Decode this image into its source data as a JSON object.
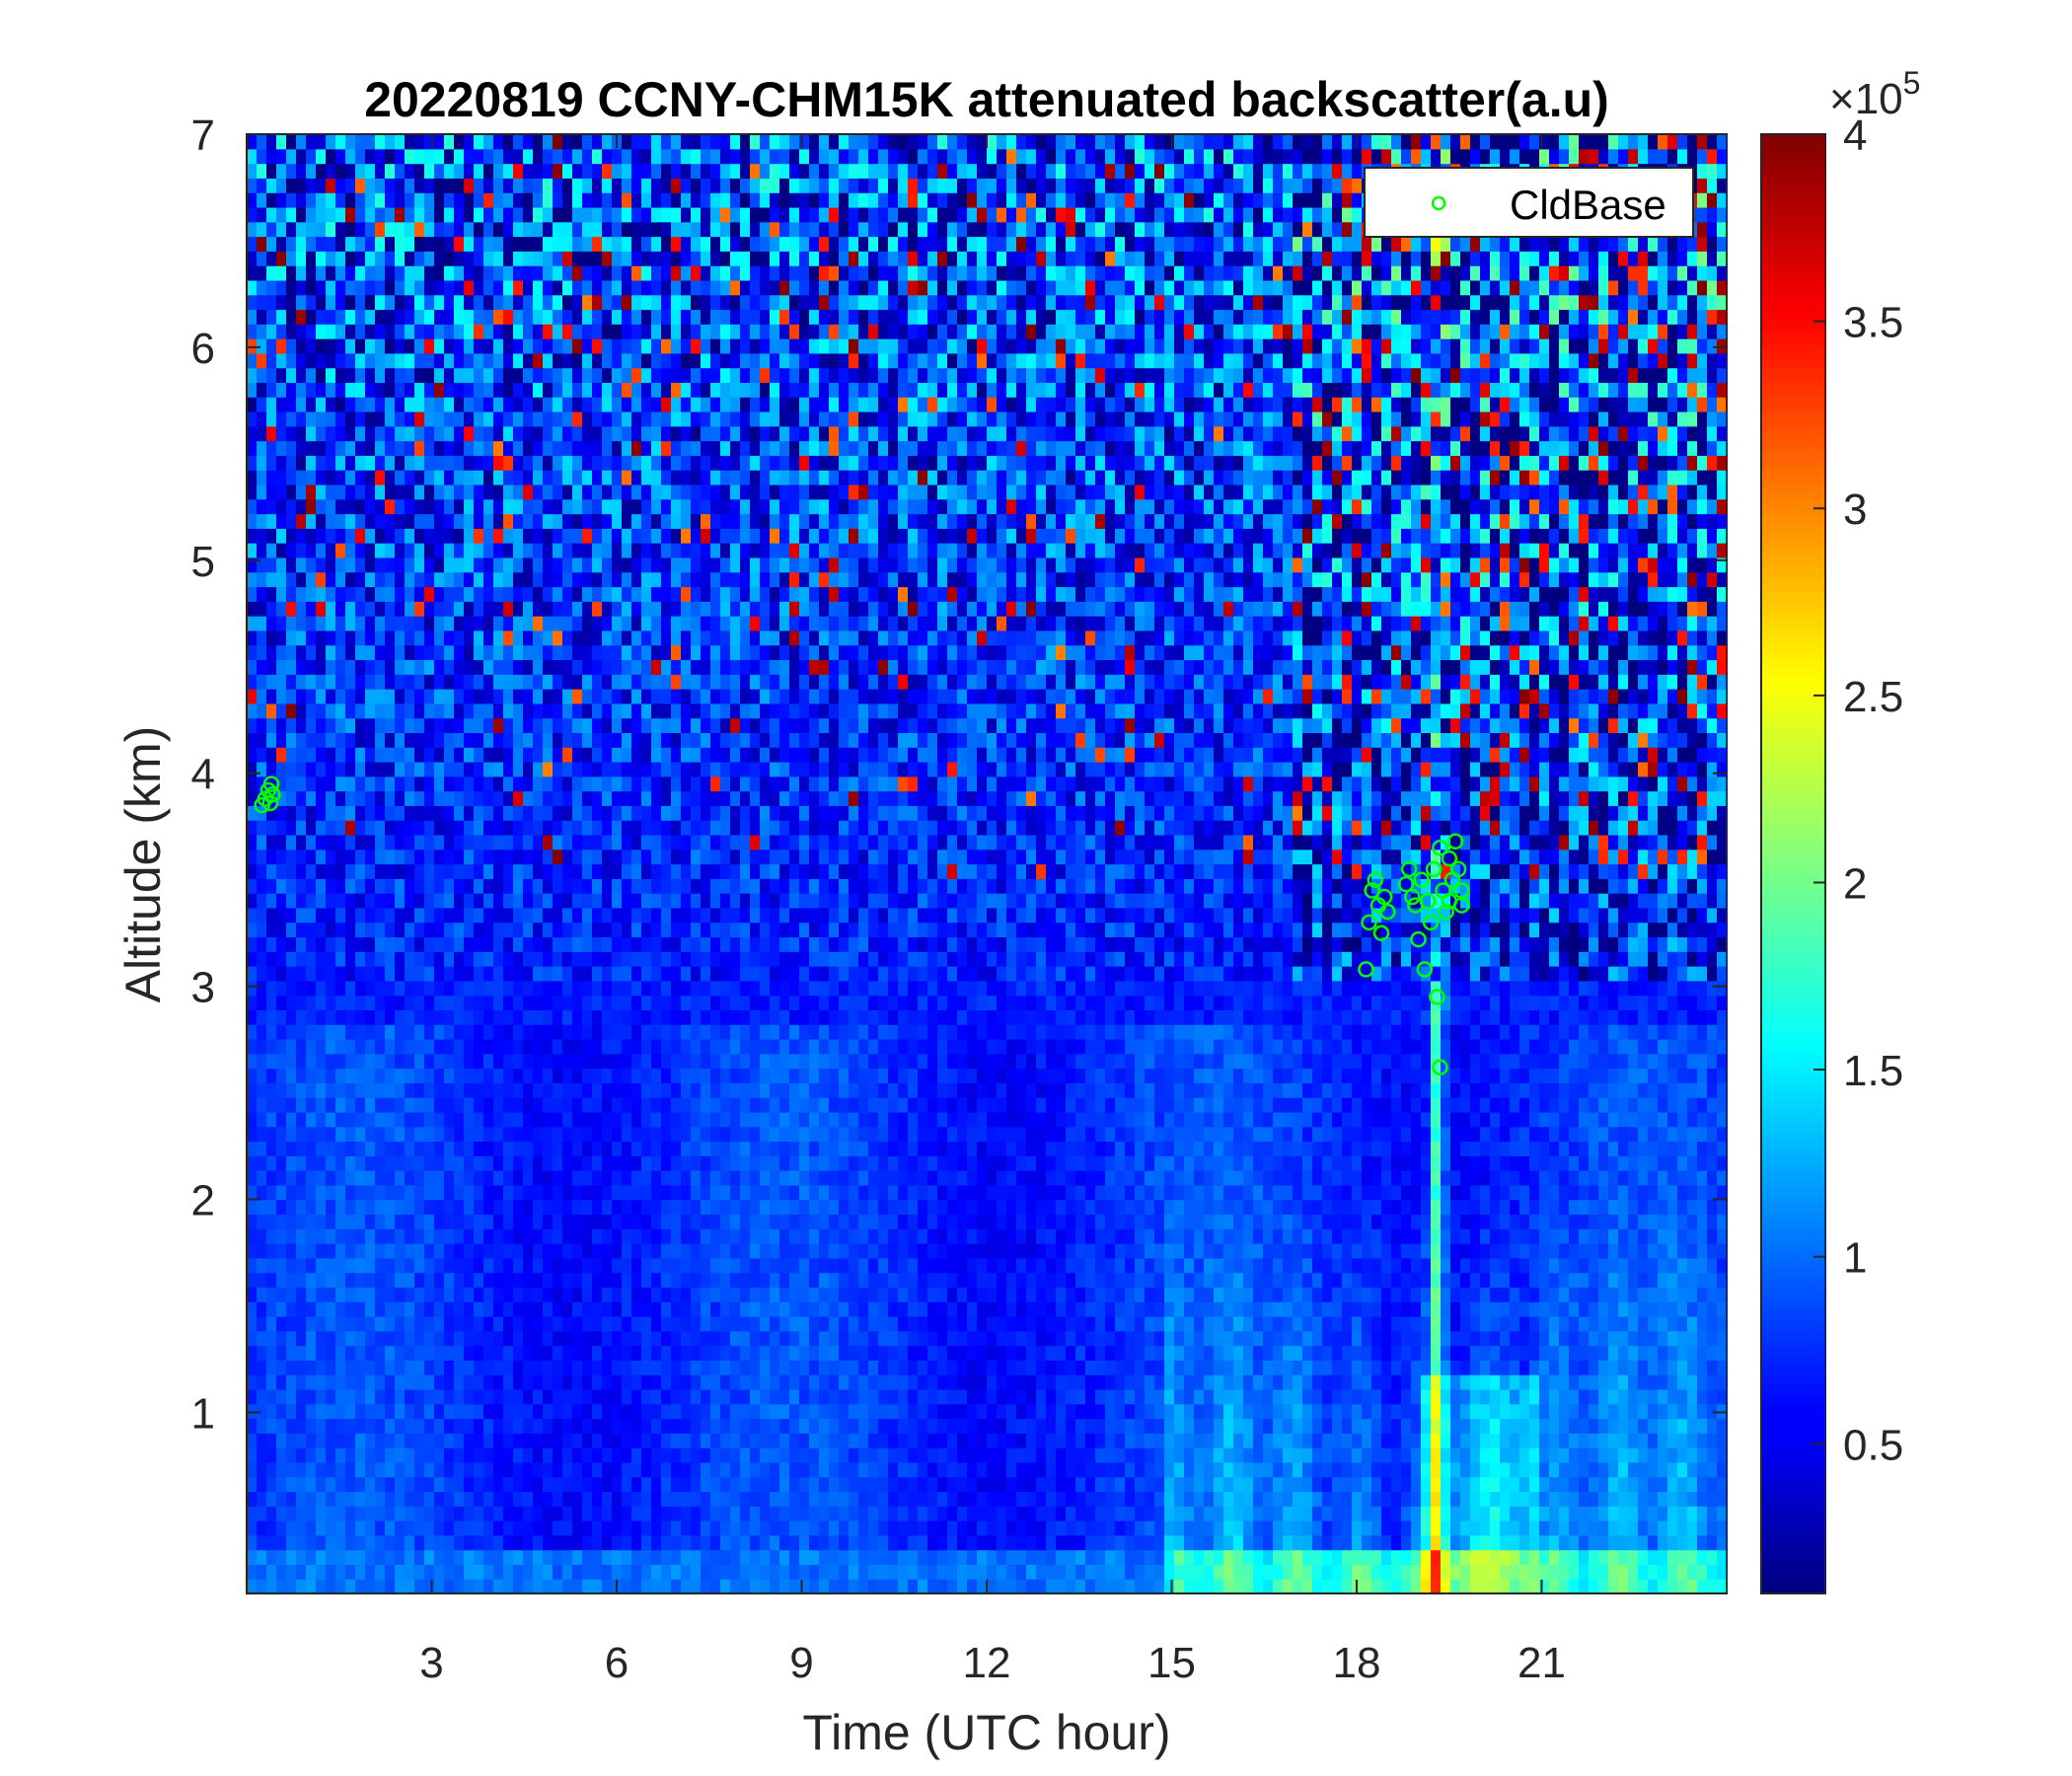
{
  "chart_data": {
    "type": "heatmap",
    "title": "20220819 CCNY-CHM15K attenuated backscatter(a.u)",
    "xlabel": "Time (UTC hour)",
    "ylabel": "Altitude (km)",
    "xlim": [
      0,
      24
    ],
    "ylim": [
      0.15,
      7
    ],
    "x_ticks": [
      3,
      6,
      9,
      12,
      15,
      18,
      21
    ],
    "x_tick_labels": [
      "3",
      "6",
      "9",
      "12",
      "15",
      "18",
      "21"
    ],
    "y_ticks": [
      1,
      2,
      3,
      4,
      5,
      6,
      7
    ],
    "y_tick_labels": [
      "1",
      "2",
      "3",
      "4",
      "5",
      "6",
      "7"
    ],
    "colormap": "jet",
    "colorbar": {
      "range": [
        10000,
        400000
      ],
      "ticks": [
        0.5,
        1,
        1.5,
        2,
        2.5,
        3,
        3.5,
        4
      ],
      "tick_labels": [
        "0.5",
        "1",
        "1.5",
        "2",
        "2.5",
        "3",
        "3.5",
        "4"
      ],
      "multiplier_base": "×10",
      "multiplier_exponent": "5"
    },
    "legend": {
      "placement": "top-right",
      "entries": [
        {
          "name": "CldBase",
          "marker": "circle",
          "color": "#00ff00"
        }
      ]
    },
    "series": [
      {
        "name": "CldBase",
        "type": "scatter",
        "color": "#00ff00",
        "points": [
          [
            0.25,
            3.85
          ],
          [
            0.3,
            3.88
          ],
          [
            0.35,
            3.92
          ],
          [
            0.4,
            3.95
          ],
          [
            0.42,
            3.9
          ],
          [
            0.38,
            3.86
          ],
          [
            18.15,
            3.08
          ],
          [
            18.2,
            3.3
          ],
          [
            18.25,
            3.45
          ],
          [
            18.3,
            3.5
          ],
          [
            18.35,
            3.38
          ],
          [
            18.4,
            3.25
          ],
          [
            18.45,
            3.42
          ],
          [
            18.5,
            3.35
          ],
          [
            18.8,
            3.48
          ],
          [
            18.85,
            3.55
          ],
          [
            18.9,
            3.42
          ],
          [
            18.95,
            3.38
          ],
          [
            19.0,
            3.22
          ],
          [
            19.05,
            3.5
          ],
          [
            19.1,
            3.08
          ],
          [
            19.15,
            3.4
          ],
          [
            19.2,
            3.3
          ],
          [
            19.25,
            3.55
          ],
          [
            19.3,
            2.95
          ],
          [
            19.35,
            3.65
          ],
          [
            19.35,
            2.62
          ],
          [
            19.4,
            3.45
          ],
          [
            19.45,
            3.35
          ],
          [
            19.5,
            3.6
          ],
          [
            19.5,
            3.4
          ],
          [
            19.55,
            3.5
          ],
          [
            19.6,
            3.68
          ],
          [
            19.65,
            3.55
          ],
          [
            19.7,
            3.45
          ],
          [
            19.7,
            3.38
          ]
        ]
      }
    ]
  }
}
